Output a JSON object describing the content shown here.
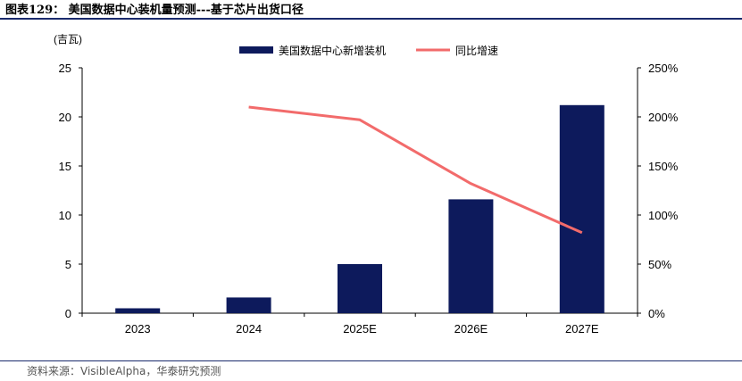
{
  "title": "图表129：  美国数据中心装机量预测---基于芯片出货口径",
  "source": "资料来源：VisibleAlpha，华泰研究预测",
  "chart_data": {
    "type": "bar",
    "categories": [
      "2023",
      "2024",
      "2025E",
      "2026E",
      "2027E"
    ],
    "series": [
      {
        "name": "美国数据中心新增装机",
        "type": "bar",
        "axis": "left",
        "values": [
          0.5,
          1.6,
          5.0,
          11.6,
          21.2
        ]
      },
      {
        "name": "同比增速",
        "type": "line",
        "axis": "right",
        "values": [
          null,
          2.1,
          1.97,
          1.32,
          0.82
        ]
      }
    ],
    "ylabel": "(吉瓦)",
    "ylim": [
      0,
      25
    ],
    "yticks": [
      "0",
      "5",
      "10",
      "15",
      "20",
      "25"
    ],
    "y2lim": [
      0,
      2.5
    ],
    "y2ticks": [
      "0%",
      "50%",
      "100%",
      "150%",
      "200%",
      "250%"
    ],
    "legend_position": "top",
    "grid": false,
    "colors": {
      "bar": "#0d1a5c",
      "line": "#f26b6b"
    }
  }
}
